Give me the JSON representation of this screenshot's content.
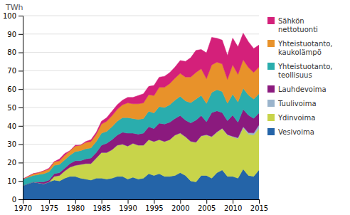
{
  "chart_data": {
    "type": "area",
    "stacked": true,
    "ylabel": "TWh",
    "x": [
      1970,
      1971,
      1972,
      1973,
      1974,
      1975,
      1976,
      1977,
      1978,
      1979,
      1980,
      1981,
      1982,
      1983,
      1984,
      1985,
      1986,
      1987,
      1988,
      1989,
      1990,
      1991,
      1992,
      1993,
      1994,
      1995,
      1996,
      1997,
      1998,
      1999,
      2000,
      2001,
      2002,
      2003,
      2004,
      2005,
      2006,
      2007,
      2008,
      2009,
      2010,
      2011,
      2012,
      2013,
      2014,
      2015
    ],
    "xlim": [
      1970,
      2015
    ],
    "xticks": [
      1970,
      1975,
      1980,
      1985,
      1990,
      1995,
      2000,
      2005,
      2010,
      2015
    ],
    "ylim": [
      0,
      100
    ],
    "yticks": [
      0,
      10,
      20,
      30,
      40,
      50,
      60,
      70,
      80,
      90,
      100
    ],
    "grid": true,
    "legend": "right",
    "series": [
      {
        "name": "Vesivoima",
        "color": "#2464a8",
        "values": [
          7.5,
          8.5,
          9.5,
          9.0,
          8.5,
          9.5,
          10.5,
          10.0,
          11.5,
          12.5,
          12.5,
          11.5,
          11.0,
          10.5,
          11.5,
          11.5,
          11.0,
          11.5,
          12.5,
          12.5,
          11.0,
          12.0,
          11.0,
          11.5,
          14.0,
          13.0,
          14.0,
          12.5,
          12.5,
          13.0,
          14.5,
          13.0,
          10.0,
          9.5,
          13.0,
          13.0,
          11.5,
          14.5,
          16.0,
          12.5,
          12.5,
          11.5,
          16.5,
          13.0,
          12.5,
          16.0
        ]
      },
      {
        "name": "Ydinvoima",
        "color": "#c8d44a",
        "values": [
          0,
          0,
          0,
          0,
          0,
          0,
          2.0,
          3.0,
          4.0,
          5.0,
          6.0,
          7.5,
          8.5,
          9.0,
          11.0,
          14.0,
          14.5,
          15.5,
          17.0,
          17.5,
          18.0,
          18.5,
          18.5,
          18.0,
          18.5,
          18.5,
          18.5,
          19.0,
          20.0,
          22.0,
          21.5,
          21.0,
          21.5,
          21.5,
          21.5,
          22.0,
          22.5,
          22.0,
          22.5,
          22.5,
          21.5,
          21.5,
          22.5,
          22.5,
          22.5,
          22.5
        ]
      },
      {
        "name": "Tuulivoima",
        "color": "#9ab4cc",
        "values": [
          0,
          0,
          0,
          0,
          0,
          0,
          0,
          0,
          0,
          0,
          0,
          0,
          0,
          0,
          0,
          0,
          0,
          0,
          0,
          0,
          0,
          0,
          0,
          0,
          0,
          0,
          0,
          0,
          0,
          0,
          0.1,
          0.1,
          0.1,
          0.1,
          0.1,
          0.2,
          0.2,
          0.2,
          0.2,
          0.3,
          0.3,
          0.5,
          0.5,
          0.8,
          1.1,
          2.0
        ]
      },
      {
        "name": "Lauhdevoima",
        "color": "#8b1a7e",
        "values": [
          0,
          0,
          0,
          0.5,
          1.0,
          1.0,
          1.5,
          1.5,
          1.5,
          2.0,
          2.5,
          2.0,
          2.5,
          3.0,
          3.0,
          4.0,
          5.0,
          5.5,
          5.5,
          6.5,
          7.0,
          5.5,
          6.0,
          6.5,
          7.0,
          7.0,
          9.0,
          9.5,
          9.5,
          9.0,
          9.5,
          9.0,
          10.0,
          12.0,
          11.0,
          7.0,
          13.0,
          11.5,
          8.5,
          7.5,
          11.5,
          8.5,
          9.5,
          9.5,
          8.0,
          6.5
        ]
      },
      {
        "name": "Yhteistuotanto,\nteollisuus",
        "color": "#2aadad",
        "values": [
          3.5,
          3.5,
          3.5,
          4.0,
          4.5,
          4.5,
          4.5,
          4.5,
          4.5,
          4.5,
          5.0,
          5.5,
          5.5,
          5.5,
          6.0,
          6.5,
          6.5,
          7.0,
          7.5,
          8.0,
          8.5,
          8.0,
          8.0,
          8.0,
          8.5,
          8.5,
          9.0,
          9.0,
          9.5,
          10.0,
          10.5,
          10.5,
          11.0,
          11.5,
          11.0,
          10.0,
          11.0,
          11.5,
          11.5,
          9.5,
          11.5,
          11.0,
          11.5,
          11.0,
          10.5,
          10.5
        ]
      },
      {
        "name": "Yhteistuotanto,\nkaukolämpö",
        "color": "#e8922a",
        "values": [
          0,
          0.5,
          1.0,
          1.0,
          1.5,
          1.5,
          2.0,
          2.0,
          2.5,
          2.5,
          3.0,
          3.0,
          3.5,
          3.5,
          4.0,
          5.0,
          5.5,
          6.0,
          6.5,
          7.0,
          8.0,
          8.0,
          8.5,
          8.5,
          9.0,
          9.5,
          10.5,
          11.0,
          11.5,
          12.0,
          12.5,
          13.0,
          14.0,
          14.5,
          14.5,
          13.5,
          15.0,
          15.0,
          15.0,
          13.0,
          16.0,
          15.0,
          15.5,
          15.0,
          14.5,
          14.5
        ]
      },
      {
        "name": "Sähkön\nnettotuonti",
        "color": "#d4207a",
        "values": [
          0,
          0,
          0,
          0,
          0,
          0.5,
          0,
          1.0,
          1.0,
          0,
          0.5,
          0,
          0.5,
          1.0,
          1.0,
          1.5,
          2.0,
          2.5,
          2.5,
          2.5,
          3.0,
          3.5,
          4.5,
          5.0,
          4.5,
          5.5,
          5.5,
          6.0,
          6.0,
          6.0,
          7.0,
          8.5,
          10.5,
          12.0,
          10.5,
          14.0,
          15.0,
          13.0,
          13.0,
          13.0,
          14.5,
          15.0,
          14.5,
          14.0,
          13.0,
          12.0
        ]
      }
    ]
  }
}
